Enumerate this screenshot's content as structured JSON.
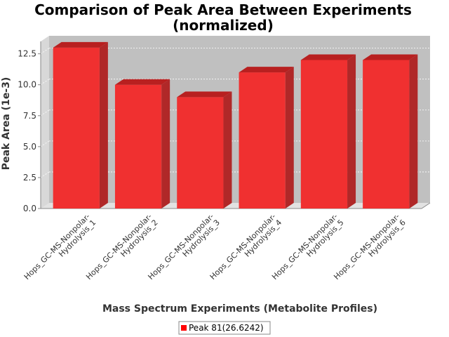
{
  "chart_data": {
    "type": "bar",
    "title": [
      "Comparison of Peak Area Between Experiments",
      "(normalized)"
    ],
    "xlabel": "Mass Spectrum Experiments (Metabolite Profiles)",
    "ylabel": "Peak Area (1e-3)",
    "categories": [
      [
        "Hops_GC-MS-Nonpolar-",
        "Hydrolysis_1"
      ],
      [
        "Hops_GC-MS-Nonpolar-",
        "Hydrolysis_2"
      ],
      [
        "Hops_GC-MS-Nonpolar-",
        "Hydrolysis_3"
      ],
      [
        "Hops_GC-MS-Nonpolar-",
        "Hydrolysis_4"
      ],
      [
        "Hops_GC-MS-Nonpolar-",
        "Hydrolysis_5"
      ],
      [
        "Hops_GC-MS-Nonpolar-",
        "Hydrolysis_6"
      ]
    ],
    "series": [
      {
        "name": "Peak 81(26.6242)",
        "values": [
          13.0,
          10.0,
          9.0,
          11.0,
          12.0,
          12.0
        ],
        "color": "#ff0000"
      }
    ],
    "ylim": [
      0,
      13.5
    ],
    "yticks": [
      0.0,
      2.5,
      5.0,
      7.5,
      10.0,
      12.5
    ],
    "ytick_labels": [
      "0.0",
      "2.5",
      "5.0",
      "7.5",
      "10.0",
      "12.5"
    ],
    "grid": true,
    "bar_style": "3d",
    "plot_background": "#c0c0c0",
    "legend_position": "bottom-center"
  }
}
